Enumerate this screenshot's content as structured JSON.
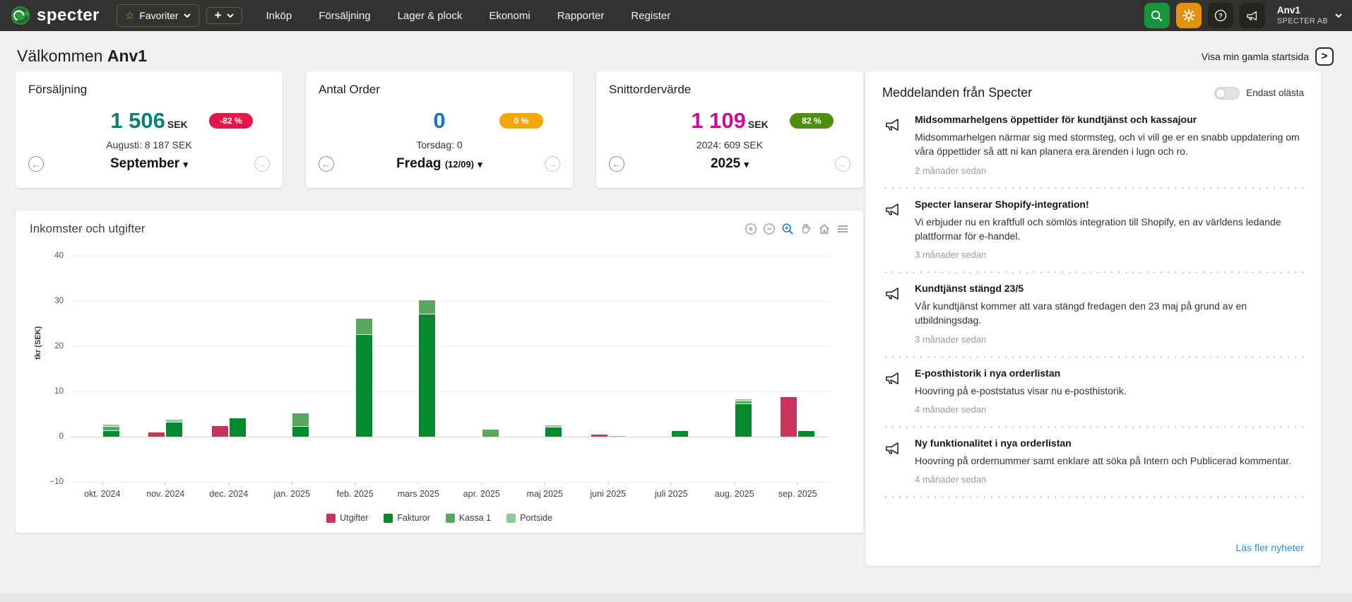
{
  "navbar": {
    "brand": "specter",
    "favorites_label": "Favoriter",
    "menu": [
      "Inköp",
      "Försäljning",
      "Lager & plock",
      "Ekonomi",
      "Rapporter",
      "Register"
    ],
    "user": {
      "name": "Anv1",
      "company": "SPECTER AB"
    }
  },
  "header": {
    "welcome": "Välkommen",
    "username": "Anv1",
    "old_start_label": "Visa min gamla startsida",
    "old_start_button": ">"
  },
  "kpi_cards": [
    {
      "id": "forsaljning",
      "title": "Försäljning",
      "value": "1 506",
      "unit": "SEK",
      "value_color": "#0d7f7a",
      "badge": "-82 %",
      "badge_color": "#e4174a",
      "compare": "Augusti: 8 187 SEK",
      "period": "September",
      "period_suffix": ""
    },
    {
      "id": "antal-order",
      "title": "Antal Order",
      "value": "0",
      "unit": "",
      "value_color": "#1e73be",
      "badge": "0 %",
      "badge_color": "#f2a800",
      "compare": "Torsdag: 0",
      "period": "Fredag",
      "period_suffix": "(12/09)"
    },
    {
      "id": "snittordervarde",
      "title": "Snittordervärde",
      "value": "1 109",
      "unit": "SEK",
      "value_color": "#c2109c",
      "badge": "82 %",
      "badge_color": "#4f8f0e",
      "compare": "2024: 609 SEK",
      "period": "2025",
      "period_suffix": ""
    }
  ],
  "chart": {
    "title": "Inkomster och utgifter"
  },
  "chart_data": {
    "type": "bar",
    "title": "Inkomster och utgifter",
    "xlabel": "",
    "ylabel": "tkr (SEK)",
    "ylim": [
      -10,
      40
    ],
    "yticks": [
      -10,
      0,
      10,
      20,
      30,
      40
    ],
    "grid": true,
    "legend_position": "bottom",
    "barmode": "red bar grouped left, green series stacked right",
    "categories": [
      "okt. 2024",
      "nov. 2024",
      "dec. 2024",
      "jan. 2025",
      "feb. 2025",
      "mars 2025",
      "apr. 2025",
      "maj 2025",
      "juni 2025",
      "juli 2025",
      "aug. 2025",
      "sep. 2025"
    ],
    "series": [
      {
        "name": "Utgifter",
        "color": "#c8355a",
        "stack": "expenses",
        "values": [
          0,
          0.9,
          2.4,
          0,
          0,
          0,
          0,
          0,
          0.4,
          0,
          0,
          8.8
        ]
      },
      {
        "name": "Fakturor",
        "color": "#038a2e",
        "stack": "income",
        "values": [
          1.2,
          3.2,
          4.0,
          2.2,
          22.5,
          27.0,
          0,
          2.0,
          0,
          1.2,
          7.2,
          1.3
        ]
      },
      {
        "name": "Kassa 1",
        "color": "#57a75c",
        "stack": "income",
        "values": [
          0.9,
          0,
          0,
          2.8,
          3.5,
          3.0,
          1.5,
          0,
          0,
          0,
          0.5,
          0
        ]
      },
      {
        "name": "Portside",
        "color": "#93c897",
        "stack": "income",
        "values": [
          0.2,
          0.4,
          0,
          0,
          0,
          0,
          0,
          0.4,
          0.2,
          0,
          0.3,
          0
        ]
      }
    ]
  },
  "messages": {
    "title": "Meddelanden från Specter",
    "toggle_label": "Endast olästa",
    "toggle_on": false,
    "footer_link": "Läs fler nyheter",
    "items": [
      {
        "title": "Midsommarhelgens öppettider för kundtjänst och kassajour",
        "body": "Midsommarhelgen närmar sig med stormsteg, och vi vill ge er en snabb uppdatering om våra öppettider så att ni kan planera era ärenden i lugn och ro.",
        "time": "2 månader sedan"
      },
      {
        "title": "Specter lanserar Shopify-integration!",
        "body": "Vi erbjuder nu en kraftfull och sömlös integration till Shopify, en av världens ledande plattformar för e-handel.",
        "time": "3 månader sedan"
      },
      {
        "title": "Kundtjänst stängd 23/5",
        "body": "Vår kundtjänst kommer att vara stängd fredagen den 23 maj på grund av en utbildningsdag.",
        "time": "3 månader sedan"
      },
      {
        "title": "E-posthistorik i nya orderlistan",
        "body": "Hoovring på e-poststatus visar nu e-posthistorik.",
        "time": "4 månader sedan"
      },
      {
        "title": "Ny funktionalitet i nya orderlistan",
        "body": "Hoovring på ordernummer samt enklare att söka på Intern och Publicerad kommentar.",
        "time": "4 månader sedan"
      }
    ]
  }
}
